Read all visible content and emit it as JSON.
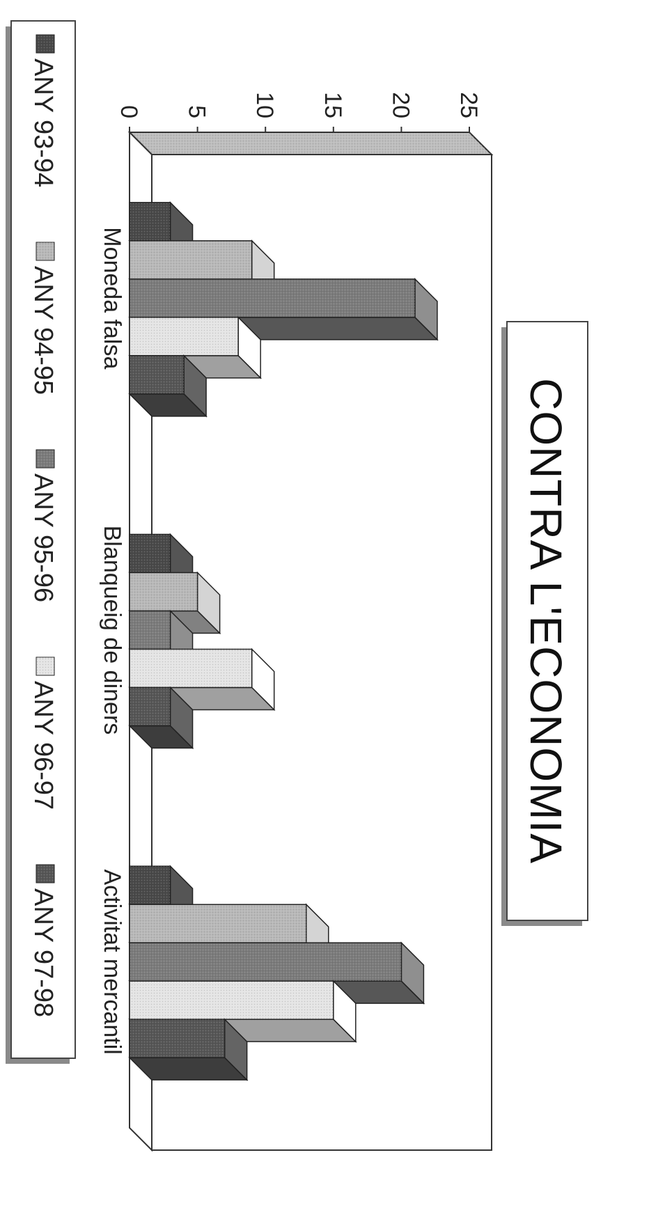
{
  "chart_data": {
    "type": "bar",
    "title": "CONTRA L'ECONOMIA",
    "categories": [
      "Moneda falsa",
      "Blanqueig de diners",
      "Activitat mercantil"
    ],
    "series": [
      {
        "name": "ANY 93-94",
        "values": [
          3,
          3,
          3
        ]
      },
      {
        "name": "ANY 94-95",
        "values": [
          9,
          5,
          13
        ]
      },
      {
        "name": "ANY 95-96",
        "values": [
          21,
          3,
          20
        ]
      },
      {
        "name": "ANY 96-97",
        "values": [
          8,
          9,
          15
        ]
      },
      {
        "name": "ANY 97-98",
        "values": [
          4,
          3,
          7
        ]
      }
    ],
    "yticks": [
      0,
      5,
      10,
      15,
      20,
      25
    ],
    "ylim": [
      0,
      25
    ],
    "grid": false,
    "legend": "bottom",
    "three_d": true,
    "colors": {
      "ANY 93-94": "#4a4a4a",
      "ANY 94-95": "#b8b8b8",
      "ANY 95-96": "#7c7c7c",
      "ANY 96-97": "#e4e4e4",
      "ANY 97-98": "#575757"
    }
  }
}
